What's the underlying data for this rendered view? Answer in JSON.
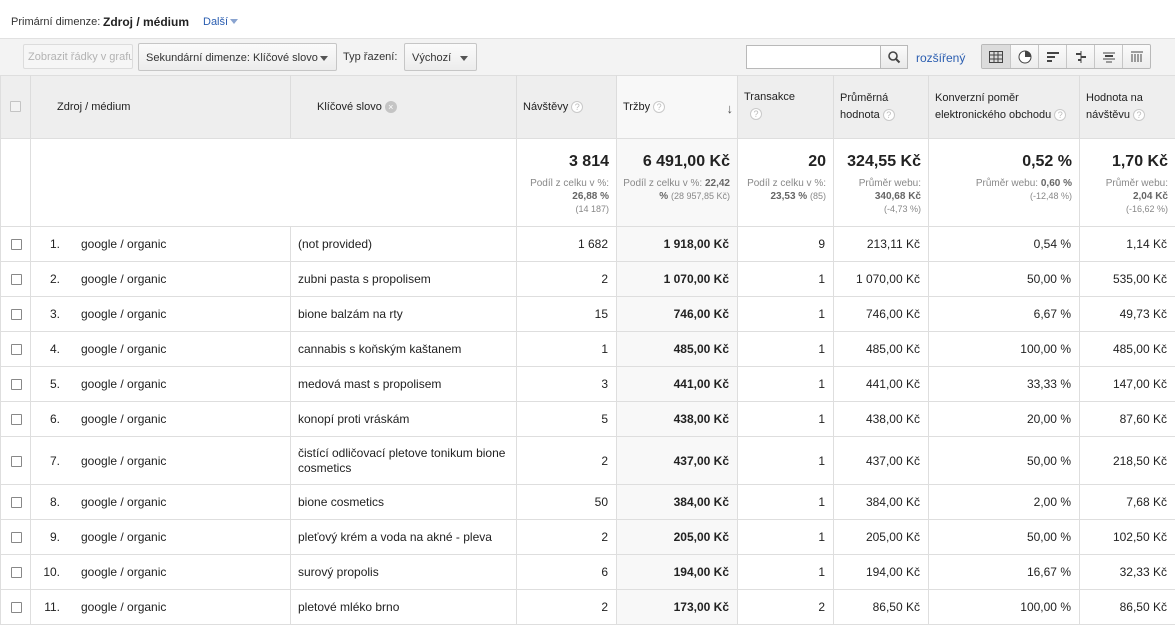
{
  "dimension_bar": {
    "primary_label": "Primární dimenze:",
    "primary_value": "Zdroj / médium",
    "more_label": "Další"
  },
  "toolbar": {
    "plot_rows_label": "Zobrazit řádky v grafu",
    "secondary_dimension_label": "Sekundární dimenze: Klíčové slovo",
    "sort_type_label": "Typ řazení:",
    "sort_type_value": "Výchozí",
    "search_value": "",
    "advanced_label": "rozšířený",
    "view_icons": [
      "table-view-icon",
      "pie-view-icon",
      "performance-view-icon",
      "comparison-view-icon",
      "term-cloud-view-icon",
      "pivot-view-icon"
    ]
  },
  "table": {
    "headers": {
      "source_medium": "Zdroj / médium",
      "keyword": "Klíčové slovo",
      "visits": "Návštěvy",
      "revenue": "Tržby",
      "transactions": "Transakce",
      "avg_value": "Průměrná hodnota",
      "conversion_rate": "Konverzní poměr elektronického obchodu",
      "per_visit_value": "Hodnota na návštěvu"
    },
    "totals": {
      "visits": "3 814",
      "visits_share_label": "Podíl z celku v %:",
      "visits_share": "26,88 %",
      "visits_total": "(14 187)",
      "revenue": "6 491,00 Kč",
      "revenue_share_label": "Podíl z celku v %:",
      "revenue_share": "22,42 %",
      "revenue_total": "(28 957,85 Kč)",
      "transactions": "20",
      "transactions_share_label": "Podíl z celku v %:",
      "transactions_share": "23,53 %",
      "transactions_total": "(85)",
      "avg_value": "324,55 Kč",
      "avg_value_site_label": "Průměr webu:",
      "avg_value_site": "340,68 Kč",
      "avg_value_diff": "(-4,73 %)",
      "conversion_rate": "0,52 %",
      "conversion_rate_site_label": "Průměr webu:",
      "conversion_rate_site": "0,60 %",
      "conversion_rate_diff": "(-12,48 %)",
      "per_visit_value": "1,70 Kč",
      "per_visit_site_label": "Průměr webu:",
      "per_visit_site": "2,04 Kč",
      "per_visit_diff": "(-16,62 %)"
    },
    "rows": [
      {
        "idx": "1.",
        "source": "google / organic",
        "keyword": "(not provided)",
        "visits": "1 682",
        "revenue": "1 918,00 Kč",
        "transactions": "9",
        "avg": "213,11 Kč",
        "conv": "0,54 %",
        "per_visit": "1,14 Kč"
      },
      {
        "idx": "2.",
        "source": "google / organic",
        "keyword": "zubni pasta s propolisem",
        "visits": "2",
        "revenue": "1 070,00 Kč",
        "transactions": "1",
        "avg": "1 070,00 Kč",
        "conv": "50,00 %",
        "per_visit": "535,00 Kč"
      },
      {
        "idx": "3.",
        "source": "google / organic",
        "keyword": "bione balzám na rty",
        "visits": "15",
        "revenue": "746,00 Kč",
        "transactions": "1",
        "avg": "746,00 Kč",
        "conv": "6,67 %",
        "per_visit": "49,73 Kč"
      },
      {
        "idx": "4.",
        "source": "google / organic",
        "keyword": "cannabis s koňským kaštanem",
        "visits": "1",
        "revenue": "485,00 Kč",
        "transactions": "1",
        "avg": "485,00 Kč",
        "conv": "100,00 %",
        "per_visit": "485,00 Kč"
      },
      {
        "idx": "5.",
        "source": "google / organic",
        "keyword": "medová mast s propolisem",
        "visits": "3",
        "revenue": "441,00 Kč",
        "transactions": "1",
        "avg": "441,00 Kč",
        "conv": "33,33 %",
        "per_visit": "147,00 Kč"
      },
      {
        "idx": "6.",
        "source": "google / organic",
        "keyword": "konopí proti vráskám",
        "visits": "5",
        "revenue": "438,00 Kč",
        "transactions": "1",
        "avg": "438,00 Kč",
        "conv": "20,00 %",
        "per_visit": "87,60 Kč"
      },
      {
        "idx": "7.",
        "source": "google / organic",
        "keyword": "čistící odličovací pletove tonikum bione cosmetics",
        "visits": "2",
        "revenue": "437,00 Kč",
        "transactions": "1",
        "avg": "437,00 Kč",
        "conv": "50,00 %",
        "per_visit": "218,50 Kč"
      },
      {
        "idx": "8.",
        "source": "google / organic",
        "keyword": "bione cosmetics",
        "visits": "50",
        "revenue": "384,00 Kč",
        "transactions": "1",
        "avg": "384,00 Kč",
        "conv": "2,00 %",
        "per_visit": "7,68 Kč"
      },
      {
        "idx": "9.",
        "source": "google / organic",
        "keyword": "pleťový krém a voda na akné - pleva",
        "visits": "2",
        "revenue": "205,00 Kč",
        "transactions": "1",
        "avg": "205,00 Kč",
        "conv": "50,00 %",
        "per_visit": "102,50 Kč"
      },
      {
        "idx": "10.",
        "source": "google / organic",
        "keyword": "surový propolis",
        "visits": "6",
        "revenue": "194,00 Kč",
        "transactions": "1",
        "avg": "194,00 Kč",
        "conv": "16,67 %",
        "per_visit": "32,33 Kč"
      },
      {
        "idx": "11.",
        "source": "google / organic",
        "keyword": "pletové mléko brno",
        "visits": "2",
        "revenue": "173,00 Kč",
        "transactions": "2",
        "avg": "86,50 Kč",
        "conv": "100,00 %",
        "per_visit": "86,50 Kč"
      }
    ]
  }
}
